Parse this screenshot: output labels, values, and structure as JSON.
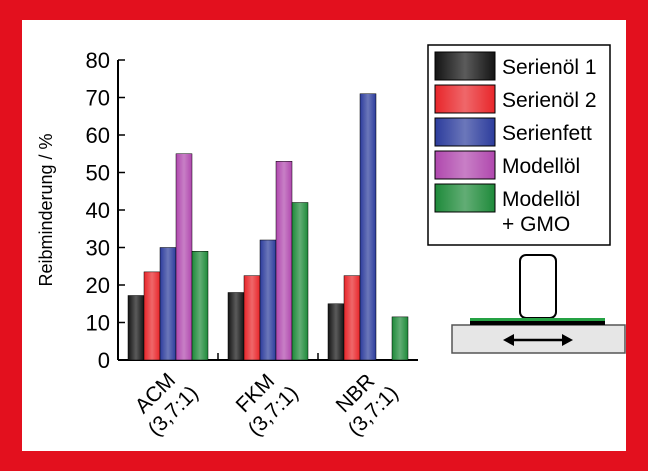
{
  "chart_data": {
    "type": "bar",
    "y_label": "Reibminderung / %",
    "categories": [
      "ACM\n(3,7:1)",
      "FKM\n(3,7:1)",
      "NBR\n(3,7:1)"
    ],
    "series": [
      {
        "name": "Serienöl 1",
        "color": "#141414",
        "values": [
          17.2,
          18,
          15
        ]
      },
      {
        "name": "Serienöl 2",
        "color": "#e8262a",
        "values": [
          23.5,
          22.5,
          22.5
        ]
      },
      {
        "name": "Serienfett",
        "color": "#2c3c9c",
        "values": [
          30,
          32,
          71
        ]
      },
      {
        "name": "Modellöl",
        "color": "#b048ae",
        "values": [
          55,
          53,
          null
        ]
      },
      {
        "name": "Modellöl\n+ GMO",
        "color": "#1e8a3a",
        "values": [
          29,
          42,
          11.5
        ]
      }
    ],
    "ylim": [
      0,
      80
    ],
    "yticks": [
      0,
      10,
      20,
      30,
      40,
      50,
      60,
      70,
      80
    ]
  }
}
